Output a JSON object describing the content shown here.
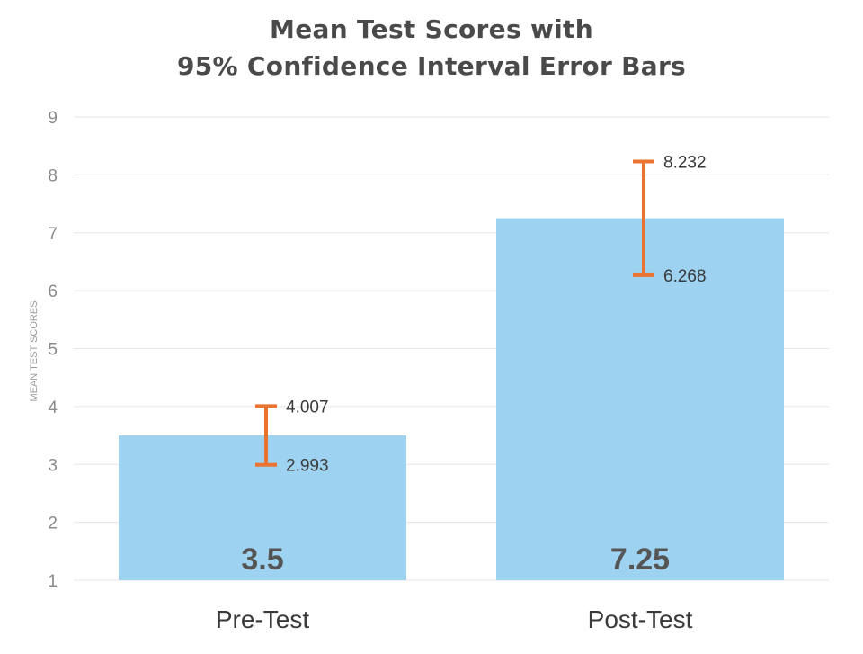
{
  "chart_data": {
    "type": "bar",
    "title_lines": [
      "Mean Test Scores with",
      "95% Confidence Interval Error Bars"
    ],
    "ylabel": "MEAN TEST SCORES",
    "xlabel": "",
    "ylim": [
      1,
      9
    ],
    "yticks": [
      "1",
      "2",
      "3",
      "4",
      "5",
      "6",
      "7",
      "8",
      "9"
    ],
    "categories": [
      "Pre-Test",
      "Post-Test"
    ],
    "values": [
      3.5,
      7.25
    ],
    "value_labels": [
      "3.5",
      "7.25"
    ],
    "error_bars": [
      {
        "lower": 2.993,
        "upper": 4.007,
        "lower_label": "2.993",
        "upper_label": "4.007"
      },
      {
        "lower": 6.268,
        "upper": 8.232,
        "lower_label": "6.268",
        "upper_label": "8.232"
      }
    ],
    "grid": true,
    "colors": {
      "bar": "#9dd2f0",
      "error_bar": "#eb7332",
      "grid": "#e6e6e6",
      "tick_text": "#8a8a8a",
      "value_label": "#555555",
      "category_text": "#3a3a3a",
      "title": "#4a4a4a"
    }
  }
}
